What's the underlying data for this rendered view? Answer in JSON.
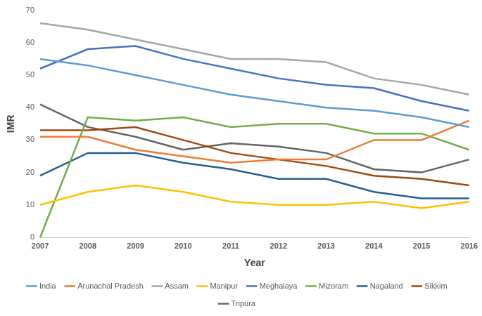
{
  "chart_data": {
    "type": "line",
    "x_label": "Year",
    "y_label": "IMR",
    "categories": [
      "2007",
      "2008",
      "2009",
      "2010",
      "2011",
      "2012",
      "2013",
      "2014",
      "2015",
      "2016"
    ],
    "series": [
      {
        "name": "India",
        "color": "#5b9bd5",
        "values": [
          55,
          53,
          50,
          47,
          44,
          42,
          40,
          39,
          37,
          34
        ]
      },
      {
        "name": "Arunachal Pradesh",
        "color": "#ed7d31",
        "values": [
          31,
          31,
          27,
          25,
          23,
          24,
          24,
          30,
          30,
          36
        ]
      },
      {
        "name": "Assam",
        "color": "#a5a5a5",
        "values": [
          66,
          64,
          61,
          58,
          55,
          55,
          54,
          49,
          47,
          44
        ]
      },
      {
        "name": "Manipur",
        "color": "#ffc000",
        "values": [
          10,
          14,
          16,
          14,
          11,
          10,
          10,
          11,
          9,
          11
        ]
      },
      {
        "name": "Meghalaya",
        "color": "#4472c4",
        "values": [
          52,
          58,
          59,
          55,
          52,
          49,
          47,
          46,
          42,
          39
        ]
      },
      {
        "name": "Mizoram",
        "color": "#70ad47",
        "values": [
          0,
          37,
          36,
          37,
          34,
          35,
          35,
          32,
          32,
          27
        ]
      },
      {
        "name": "Nagaland",
        "color": "#255e91",
        "values": [
          19,
          26,
          26,
          23,
          21,
          18,
          18,
          14,
          12,
          12
        ]
      },
      {
        "name": "Sikkim",
        "color": "#9e480e",
        "values": [
          33,
          33,
          34,
          30,
          26,
          24,
          22,
          19,
          18,
          16
        ]
      },
      {
        "name": "Tripura",
        "color": "#636363",
        "values": [
          41,
          34,
          31,
          27,
          29,
          28,
          26,
          21,
          20,
          24
        ]
      }
    ],
    "ylim": [
      0,
      70
    ],
    "yticks": [
      0,
      10,
      20,
      30,
      40,
      50,
      60,
      70
    ],
    "grid": false,
    "legend": "bottom"
  }
}
